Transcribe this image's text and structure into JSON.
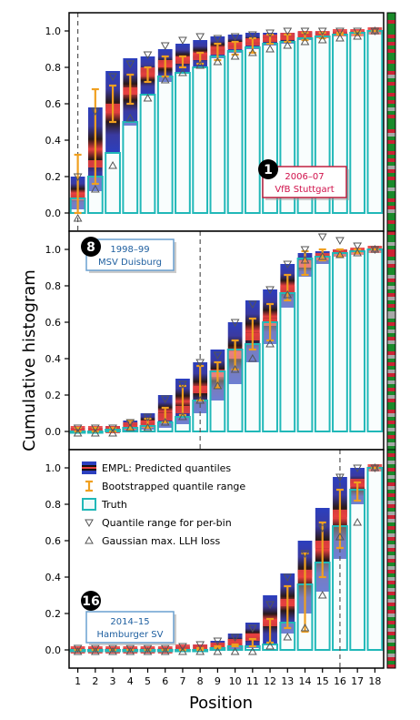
{
  "figure": {
    "ylabel": "Cumulative histogram",
    "xlabel": "Position",
    "yticks": [
      "0.0",
      "0.2",
      "0.4",
      "0.6",
      "0.8",
      "1.0"
    ],
    "xticks": [
      "1",
      "2",
      "3",
      "4",
      "5",
      "6",
      "7",
      "8",
      "9",
      "10",
      "11",
      "12",
      "13",
      "14",
      "15",
      "16",
      "17",
      "18"
    ]
  },
  "legend": {
    "items": [
      {
        "icon": "quantile-box-icon",
        "label": "EMPL: Predicted quantiles"
      },
      {
        "icon": "errorbar-icon",
        "label": "Bootstrapped quantile range"
      },
      {
        "icon": "truth-box-icon",
        "label": "Truth"
      },
      {
        "icon": "triangle-down-icon",
        "label": "Quantile range for per-bin"
      },
      {
        "icon": "triangle-up-icon",
        "label": "Gaussian max. LLH loss"
      }
    ]
  },
  "colors": {
    "truth_edge": "#20b8b8",
    "truth_fill": "#eefafa",
    "quantile_outer": "#2b3fbf",
    "quantile_inner": "#1a1010",
    "quantile_median": "#e84040",
    "errorbar": "#f0a020",
    "marker": "#555555",
    "badge_stuttgart_text": "#d0104a",
    "badge_blue_text": "#2060a0",
    "strip_green": "#1a8a2a",
    "strip_red": "#cc2233",
    "strip_grey": "#a8a8a8"
  },
  "chart_data": [
    {
      "type": "bar",
      "panel_badge": "1",
      "season": "2006–07",
      "team": "VfB Stuttgart",
      "badge_style": "red",
      "truth_position": 1,
      "categories": [
        1,
        2,
        3,
        4,
        5,
        6,
        7,
        8,
        9,
        10,
        11,
        12,
        13,
        14,
        15,
        16,
        17,
        18
      ],
      "truth": [
        0.08,
        0.2,
        0.33,
        0.5,
        0.65,
        0.75,
        0.77,
        0.8,
        0.86,
        0.89,
        0.91,
        0.93,
        0.94,
        0.96,
        0.97,
        0.98,
        0.99,
        1.0
      ],
      "q_low": [
        0.02,
        0.12,
        0.33,
        0.48,
        0.65,
        0.72,
        0.77,
        0.8,
        0.85,
        0.88,
        0.9,
        0.92,
        0.93,
        0.95,
        0.96,
        0.97,
        0.98,
        1.0
      ],
      "q_high": [
        0.2,
        0.58,
        0.78,
        0.85,
        0.86,
        0.9,
        0.93,
        0.95,
        0.97,
        0.98,
        0.99,
        0.99,
        0.99,
        0.995,
        0.995,
        0.997,
        0.998,
        1.0
      ],
      "median": [
        0.09,
        0.27,
        0.58,
        0.67,
        0.78,
        0.82,
        0.84,
        0.86,
        0.89,
        0.92,
        0.94,
        0.96,
        0.97,
        0.98,
        0.98,
        0.99,
        0.99,
        1.0
      ],
      "err_low": [
        0.0,
        0.16,
        0.5,
        0.6,
        0.72,
        0.75,
        0.8,
        0.82,
        0.84,
        0.87,
        0.88,
        0.93,
        0.94,
        0.95,
        0.96,
        0.98,
        0.98,
        1.0
      ],
      "err_high": [
        0.32,
        0.68,
        0.7,
        0.76,
        0.8,
        0.86,
        0.86,
        0.88,
        0.93,
        0.94,
        0.96,
        0.98,
        0.98,
        0.99,
        0.99,
        0.99,
        0.995,
        1.0
      ],
      "tri_down": [
        0.2,
        0.56,
        0.75,
        0.82,
        0.87,
        0.92,
        0.95,
        0.97,
        0.96,
        0.97,
        0.98,
        0.99,
        1.0,
        1.0,
        1.0,
        1.0,
        1.0,
        1.0
      ],
      "tri_up": [
        -0.03,
        0.13,
        0.26,
        0.52,
        0.63,
        0.73,
        0.77,
        0.81,
        0.83,
        0.86,
        0.88,
        0.9,
        0.92,
        0.94,
        0.95,
        0.96,
        0.97,
        1.0
      ],
      "ylim": [
        -0.1,
        1.1
      ]
    },
    {
      "type": "bar",
      "panel_badge": "8",
      "season": "1998–99",
      "team": "MSV Duisburg",
      "badge_style": "blue",
      "truth_position": 8,
      "categories": [
        1,
        2,
        3,
        4,
        5,
        6,
        7,
        8,
        9,
        10,
        11,
        12,
        13,
        14,
        15,
        16,
        17,
        18
      ],
      "truth": [
        0.0,
        0.0,
        0.01,
        0.02,
        0.03,
        0.05,
        0.08,
        0.17,
        0.33,
        0.45,
        0.48,
        0.6,
        0.76,
        0.95,
        0.96,
        0.98,
        0.99,
        1.0
      ],
      "q_low": [
        0.0,
        0.0,
        0.0,
        0.0,
        0.01,
        0.02,
        0.04,
        0.1,
        0.17,
        0.26,
        0.38,
        0.48,
        0.68,
        0.85,
        0.92,
        0.96,
        0.98,
        1.0
      ],
      "q_high": [
        0.02,
        0.02,
        0.03,
        0.06,
        0.1,
        0.2,
        0.29,
        0.38,
        0.45,
        0.6,
        0.72,
        0.78,
        0.92,
        0.98,
        0.99,
        1.0,
        1.0,
        1.0
      ],
      "median": [
        0.01,
        0.01,
        0.01,
        0.03,
        0.04,
        0.08,
        0.12,
        0.23,
        0.32,
        0.42,
        0.52,
        0.6,
        0.78,
        0.92,
        0.96,
        0.98,
        0.99,
        1.0
      ],
      "err_low": [
        0.0,
        0.0,
        0.0,
        0.01,
        0.02,
        0.05,
        0.09,
        0.17,
        0.24,
        0.34,
        0.45,
        0.5,
        0.72,
        0.86,
        0.94,
        0.96,
        0.98,
        1.0
      ],
      "err_high": [
        0.02,
        0.02,
        0.02,
        0.06,
        0.07,
        0.13,
        0.25,
        0.36,
        0.38,
        0.5,
        0.62,
        0.7,
        0.86,
        0.99,
        1.0,
        1.0,
        1.0,
        1.0
      ],
      "tri_down": [
        0.02,
        0.02,
        0.02,
        0.05,
        0.08,
        0.18,
        0.26,
        0.38,
        0.42,
        0.6,
        0.7,
        0.78,
        0.92,
        1.0,
        1.07,
        1.05,
        1.02,
        1.0
      ],
      "tri_up": [
        -0.01,
        -0.01,
        -0.01,
        0.02,
        0.02,
        0.05,
        0.08,
        0.17,
        0.25,
        0.34,
        0.4,
        0.48,
        0.75,
        0.94,
        0.96,
        0.97,
        0.98,
        1.0
      ],
      "ylim": [
        -0.1,
        1.1
      ]
    },
    {
      "type": "bar",
      "panel_badge": "16",
      "season": "2014–15",
      "team": "Hamburger SV",
      "badge_style": "blue",
      "truth_position": 16,
      "categories": [
        1,
        2,
        3,
        4,
        5,
        6,
        7,
        8,
        9,
        10,
        11,
        12,
        13,
        14,
        15,
        16,
        17,
        18
      ],
      "truth": [
        0.0,
        0.0,
        0.0,
        0.0,
        0.0,
        0.0,
        0.0,
        0.0,
        0.01,
        0.02,
        0.02,
        0.03,
        0.15,
        0.36,
        0.48,
        0.68,
        0.88,
        1.0
      ],
      "q_low": [
        0.0,
        0.0,
        0.0,
        0.0,
        0.0,
        0.0,
        0.0,
        0.0,
        0.0,
        0.0,
        0.01,
        0.03,
        0.09,
        0.2,
        0.32,
        0.5,
        0.8,
        1.0
      ],
      "q_high": [
        0.01,
        0.01,
        0.01,
        0.01,
        0.01,
        0.01,
        0.02,
        0.03,
        0.05,
        0.09,
        0.15,
        0.3,
        0.42,
        0.6,
        0.78,
        0.95,
        1.0,
        1.0
      ],
      "median": [
        0.0,
        0.0,
        0.0,
        0.0,
        0.0,
        0.0,
        0.01,
        0.01,
        0.02,
        0.04,
        0.07,
        0.15,
        0.26,
        0.42,
        0.58,
        0.75,
        0.92,
        1.0
      ],
      "err_low": [
        0.0,
        0.0,
        0.0,
        0.0,
        0.0,
        0.0,
        0.0,
        0.0,
        0.01,
        0.02,
        0.02,
        0.04,
        0.12,
        0.1,
        0.4,
        0.56,
        0.82,
        1.0
      ],
      "err_high": [
        0.0,
        0.0,
        0.0,
        0.0,
        0.0,
        0.0,
        0.0,
        0.01,
        0.02,
        0.03,
        0.06,
        0.17,
        0.35,
        0.53,
        0.7,
        0.88,
        0.92,
        1.0
      ],
      "tri_down": [
        0.01,
        0.01,
        0.01,
        0.01,
        0.01,
        0.01,
        0.02,
        0.03,
        0.05,
        0.07,
        0.12,
        0.25,
        0.4,
        0.53,
        0.67,
        0.95,
        1.0,
        1.0
      ],
      "tri_up": [
        -0.01,
        -0.01,
        -0.01,
        -0.01,
        -0.01,
        -0.01,
        -0.01,
        -0.01,
        -0.01,
        -0.01,
        -0.01,
        0.02,
        0.07,
        0.12,
        0.3,
        0.62,
        0.7,
        1.0
      ],
      "ylim": [
        -0.1,
        1.1
      ]
    }
  ],
  "strips": [
    [
      "g",
      "g",
      "r",
      "g",
      "g",
      "g",
      "r",
      "g",
      "r",
      "g",
      "r",
      "g",
      "g",
      "r",
      "g",
      "g",
      "r",
      "y",
      "g",
      "r",
      "g",
      "g",
      "r",
      "g",
      "r",
      "g",
      "y",
      "g",
      "r",
      "g",
      "g",
      "g",
      "r",
      "y",
      "g",
      "r",
      "g",
      "g",
      "r",
      "g",
      "r",
      "g",
      "y",
      "r",
      "g",
      "r",
      "g",
      "g",
      "y",
      "g",
      "g",
      "r",
      "g",
      "r",
      "y",
      "g",
      "g",
      "r",
      "g",
      "g"
    ],
    [
      "r",
      "g",
      "g",
      "y",
      "g",
      "r",
      "r",
      "g",
      "y",
      "r",
      "g",
      "g",
      "y",
      "r",
      "g",
      "y",
      "g",
      "r",
      "y",
      "g",
      "r",
      "g",
      "y",
      "y",
      "g",
      "r",
      "g",
      "y",
      "g",
      "r",
      "y",
      "g",
      "g",
      "r",
      "y",
      "g",
      "r",
      "g",
      "y",
      "r",
      "g",
      "y",
      "g",
      "r",
      "g",
      "y",
      "r",
      "g",
      "g",
      "r",
      "y",
      "g",
      "r",
      "g",
      "y",
      "g",
      "r",
      "g",
      "y",
      "g"
    ],
    [
      "g",
      "r",
      "g",
      "y",
      "g",
      "r",
      "g",
      "y",
      "g",
      "r",
      "y",
      "g",
      "r",
      "g",
      "y",
      "r",
      "g",
      "y",
      "r",
      "y",
      "g",
      "r",
      "g",
      "y",
      "r",
      "g",
      "y",
      "r",
      "g",
      "y",
      "r",
      "g",
      "y",
      "r",
      "g",
      "y",
      "r",
      "g",
      "y",
      "r",
      "g",
      "y",
      "r",
      "g",
      "r",
      "y",
      "g",
      "r",
      "g",
      "y",
      "r",
      "g",
      "y",
      "g",
      "r",
      "g",
      "y",
      "r",
      "g",
      "r"
    ]
  ]
}
